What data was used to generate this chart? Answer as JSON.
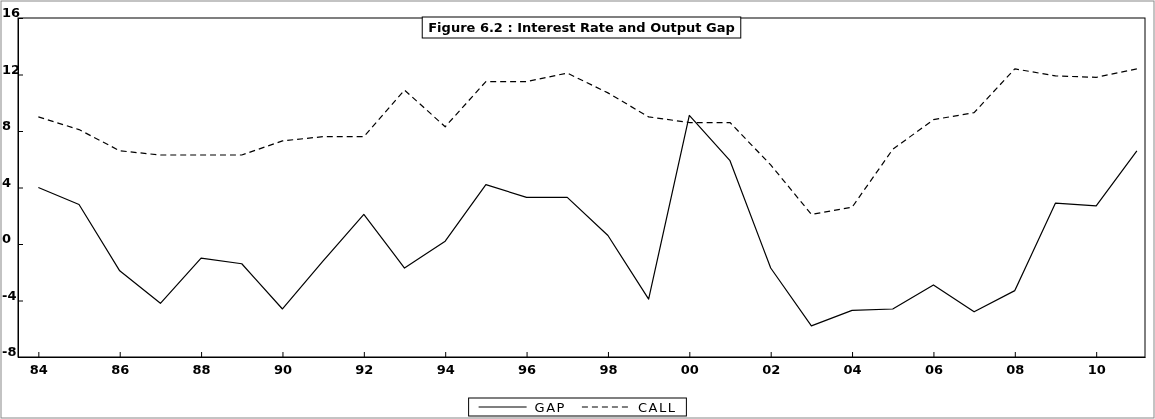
{
  "chart_data": {
    "type": "line",
    "title": "Figure 6.2 : Interest Rate and Output Gap",
    "x": [
      1984,
      1985,
      1986,
      1987,
      1988,
      1989,
      1990,
      1991,
      1992,
      1993,
      1994,
      1995,
      1996,
      1997,
      1998,
      1999,
      2000,
      2001,
      2002,
      2003,
      2004,
      2005,
      2006,
      2007,
      2008,
      2009,
      2010,
      2011
    ],
    "series": [
      {
        "name": "GAP",
        "color": "#000000",
        "line_style": "solid",
        "values": [
          4.0,
          2.8,
          -1.9,
          -4.2,
          -1.0,
          -1.4,
          -4.6,
          -1.2,
          2.1,
          -1.7,
          0.2,
          4.2,
          3.3,
          3.3,
          0.6,
          -3.9,
          9.1,
          5.9,
          -1.7,
          -5.8,
          -4.7,
          -4.6,
          -2.9,
          -4.8,
          -3.3,
          2.9,
          2.7,
          6.6
        ]
      },
      {
        "name": "CALL",
        "color": "#000000",
        "line_style": "dashed",
        "values": [
          9.0,
          8.1,
          6.6,
          6.3,
          6.3,
          6.3,
          7.3,
          7.6,
          7.6,
          10.9,
          8.3,
          11.5,
          11.5,
          12.1,
          10.7,
          9.0,
          8.6,
          8.6,
          5.6,
          2.1,
          2.6,
          6.7,
          8.8,
          9.3,
          12.4,
          11.9,
          11.8,
          12.4
        ]
      }
    ],
    "xlim": [
      1983.5,
      2011.2
    ],
    "xticks": [
      {
        "value": 1984,
        "label": "84"
      },
      {
        "value": 1986,
        "label": "86"
      },
      {
        "value": 1988,
        "label": "88"
      },
      {
        "value": 1990,
        "label": "90"
      },
      {
        "value": 1992,
        "label": "92"
      },
      {
        "value": 1994,
        "label": "94"
      },
      {
        "value": 1996,
        "label": "96"
      },
      {
        "value": 1998,
        "label": "98"
      },
      {
        "value": 2000,
        "label": "00"
      },
      {
        "value": 2002,
        "label": "02"
      },
      {
        "value": 2004,
        "label": "04"
      },
      {
        "value": 2006,
        "label": "06"
      },
      {
        "value": 2008,
        "label": "08"
      },
      {
        "value": 2010,
        "label": "10"
      }
    ],
    "ylim": [
      -8,
      16
    ],
    "yticks": [
      -8,
      -4,
      0,
      4,
      8,
      12,
      16
    ],
    "grid": false,
    "legend": "bottom",
    "marker": "none"
  }
}
